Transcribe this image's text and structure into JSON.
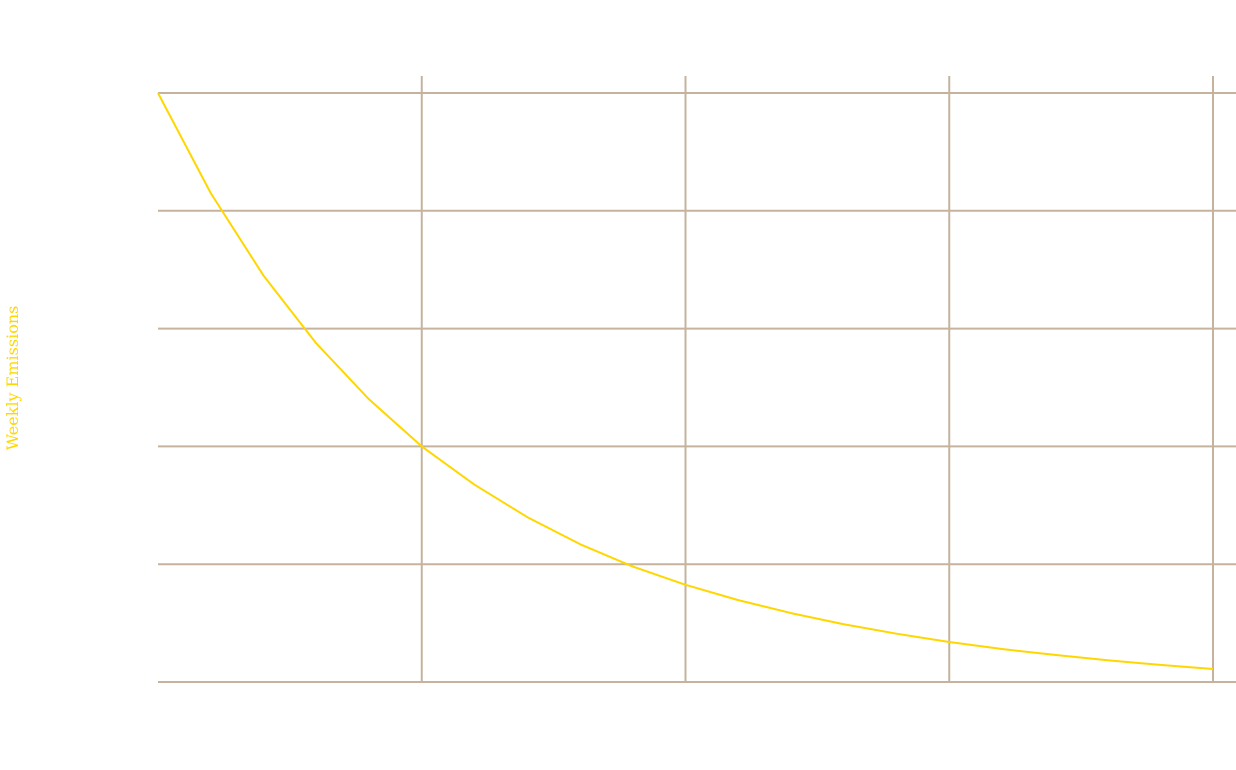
{
  "chart_data": {
    "type": "line",
    "title": "",
    "xlabel": "",
    "ylabel": "Weekly Emissions",
    "grid": true,
    "legend": "none",
    "x_ticks": [
      0.25,
      0.5,
      0.75,
      1.0
    ],
    "y_ticks": [
      0,
      0.2,
      0.4,
      0.6,
      0.8
    ],
    "xlim": [
      0,
      1.0
    ],
    "ylim": [
      0,
      1.0
    ],
    "series": [
      {
        "color": "#FFD700",
        "x": [
          0.0,
          0.05,
          0.1,
          0.15,
          0.2,
          0.25,
          0.3,
          0.35,
          0.4,
          0.45,
          0.5,
          0.55,
          0.6,
          0.65,
          0.7,
          0.75,
          0.8,
          0.85,
          0.9,
          0.95,
          1.0
        ],
        "y": [
          1.0,
          0.83,
          0.69,
          0.575,
          0.48,
          0.4,
          0.335,
          0.28,
          0.234,
          0.196,
          0.165,
          0.139,
          0.117,
          0.098,
          0.082,
          0.068,
          0.056,
          0.046,
          0.037,
          0.029,
          0.022
        ]
      }
    ],
    "colors": {
      "line": "#FFD700",
      "grid": "#C6B39D",
      "ylabel": "#FFD700"
    }
  }
}
